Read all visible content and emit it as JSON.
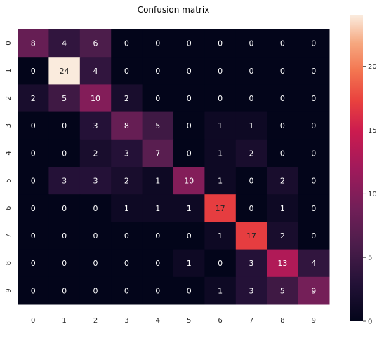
{
  "chart_data": {
    "type": "heatmap",
    "title": "Confusion matrix",
    "xlabel": "",
    "ylabel": "",
    "x_ticks": [
      "0",
      "1",
      "2",
      "3",
      "4",
      "5",
      "6",
      "7",
      "8",
      "9"
    ],
    "y_ticks": [
      "0",
      "1",
      "2",
      "3",
      "4",
      "5",
      "6",
      "7",
      "8",
      "9"
    ],
    "matrix": [
      [
        8,
        4,
        6,
        0,
        0,
        0,
        0,
        0,
        0,
        0
      ],
      [
        0,
        24,
        4,
        0,
        0,
        0,
        0,
        0,
        0,
        0
      ],
      [
        2,
        5,
        10,
        2,
        0,
        0,
        0,
        0,
        0,
        0
      ],
      [
        0,
        0,
        3,
        8,
        5,
        0,
        1,
        1,
        0,
        0
      ],
      [
        0,
        0,
        2,
        3,
        7,
        0,
        1,
        2,
        0,
        0
      ],
      [
        0,
        3,
        3,
        2,
        1,
        10,
        1,
        0,
        2,
        0
      ],
      [
        0,
        0,
        0,
        1,
        1,
        1,
        17,
        0,
        1,
        0
      ],
      [
        0,
        0,
        0,
        0,
        0,
        0,
        1,
        17,
        2,
        0
      ],
      [
        0,
        0,
        0,
        0,
        0,
        1,
        0,
        3,
        13,
        4
      ],
      [
        0,
        0,
        0,
        0,
        0,
        0,
        1,
        3,
        5,
        9
      ]
    ],
    "colorbar": {
      "min": 0,
      "max": 24,
      "ticks": [
        0,
        5,
        10,
        15,
        20
      ],
      "colormap": "rocket"
    },
    "annotations": true,
    "grid": false,
    "legend": "colorbar-right"
  }
}
